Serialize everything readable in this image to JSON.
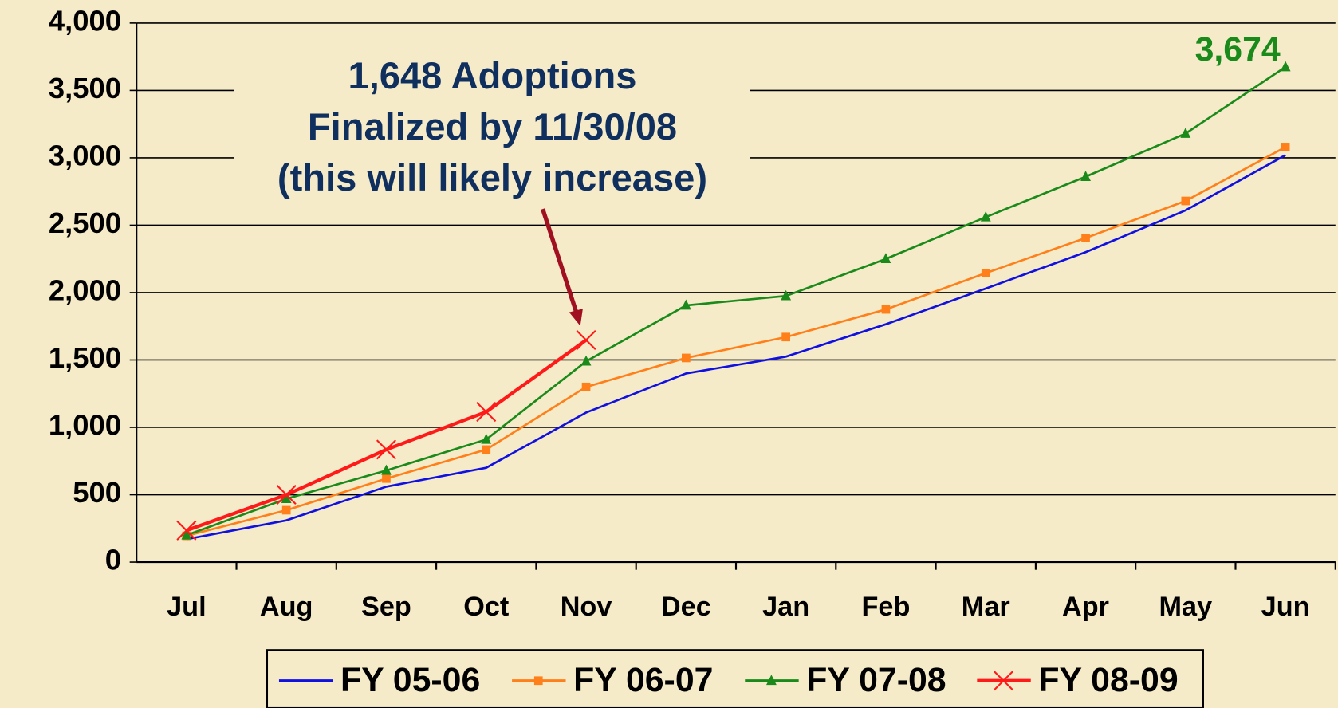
{
  "chart_data": {
    "type": "line",
    "categories": [
      "Jul",
      "Aug",
      "Sep",
      "Oct",
      "Nov",
      "Dec",
      "Jan",
      "Feb",
      "Mar",
      "Apr",
      "May",
      "Jun"
    ],
    "series": [
      {
        "name": "FY 05-06",
        "color": "#1010e0",
        "marker": "none",
        "values": [
          170,
          310,
          560,
          700,
          1110,
          1400,
          1525,
          1765,
          2030,
          2300,
          2610,
          3020
        ]
      },
      {
        "name": "FY 06-07",
        "color": "#ff7f1a",
        "marker": "square",
        "values": [
          195,
          385,
          620,
          835,
          1300,
          1515,
          1670,
          1875,
          2145,
          2405,
          2680,
          3080
        ]
      },
      {
        "name": "FY 07-08",
        "color": "#1a8a1a",
        "marker": "triangle",
        "values": [
          200,
          470,
          680,
          910,
          1490,
          1905,
          1975,
          2250,
          2560,
          2860,
          3180,
          3674
        ],
        "value_labels": [
          null,
          null,
          null,
          null,
          null,
          null,
          null,
          null,
          null,
          null,
          null,
          "3,674"
        ]
      },
      {
        "name": "FY 08-09",
        "color": "#ff1a1a",
        "marker": "x",
        "values": [
          235,
          500,
          835,
          1115,
          1648,
          null,
          null,
          null,
          null,
          null,
          null,
          null
        ]
      }
    ],
    "ylim": [
      0,
      4000
    ],
    "yticks": [
      0,
      500,
      {
        "value": 1000,
        "label": "1,000"
      },
      {
        "value": 1500,
        "label": "1,500"
      },
      {
        "value": 2000,
        "label": "2,000"
      },
      {
        "value": 2500,
        "label": "2,500"
      },
      {
        "value": 3000,
        "label": "3,000"
      },
      {
        "value": 3500,
        "label": "3,500"
      },
      {
        "value": 4000,
        "label": "4,000"
      }
    ],
    "grid": true,
    "legend": "bottom",
    "annotation": {
      "lines": [
        "1,648 Adoptions",
        "Finalized by 11/30/08",
        "(this will likely increase)"
      ],
      "color": "#0f2f5f",
      "arrow_color": "#a01020"
    }
  }
}
